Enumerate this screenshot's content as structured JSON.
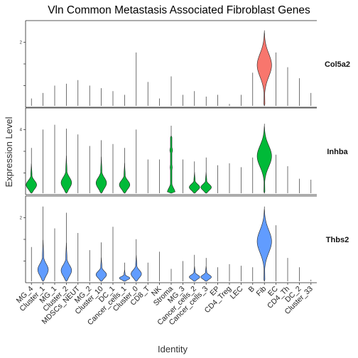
{
  "chart_data": {
    "type": "violin",
    "title": "Vln Common Metastasis Associated Fibroblast Genes",
    "xlabel": "Identity",
    "ylabel": "Expression Level",
    "categories": [
      "MG_4",
      "Cluster_1",
      "MG_1",
      "Cluster_2",
      "MDSCs_NEUT",
      "MG_2",
      "Cluster_10",
      "DC_1",
      "Cancer_cells_1",
      "Cluster_0",
      "CD8_T",
      "NK",
      "Stroma",
      "MG_3",
      "Cancer_cells_2",
      "Cancer_cells_3",
      "EP",
      "CD4_Treg",
      "LEC",
      "B",
      "Fib",
      "EC",
      "CD4_Th",
      "DC_2",
      "Cluster_33"
    ],
    "panels": [
      {
        "gene": "Col5a2",
        "color": "#f8766d",
        "ytick_labels": [
          "2"
        ],
        "max": [
          0.2,
          0.35,
          0.55,
          0.6,
          0.7,
          0.55,
          0.48,
          0.4,
          0.3,
          1.45,
          0.65,
          0.2,
          0.8,
          0.3,
          0.4,
          0.25,
          0.3,
          0.05,
          0.3,
          0.9,
          2.05,
          1.45,
          1.05,
          0.75,
          0.35
        ],
        "violin": [
          0,
          0,
          0,
          0,
          0,
          0,
          0,
          0,
          0,
          0,
          0,
          0,
          0,
          0,
          0,
          0,
          0,
          0,
          0,
          0,
          1,
          0,
          0,
          0,
          0
        ]
      },
      {
        "gene": "Inhba",
        "color": "#00ba38",
        "ytick_labels": [
          "4"
        ],
        "max": [
          2.35,
          3.3,
          3.55,
          3.35,
          3.05,
          2.45,
          2.75,
          2.55,
          2.35,
          3.3,
          1.75,
          1.75,
          3.5,
          1.75,
          1.65,
          1.85,
          1.45,
          1.55,
          1.35,
          1.85,
          3.6,
          2.0,
          1.4,
          0.75,
          0.7
        ],
        "violin": [
          1,
          0,
          0,
          1,
          0,
          0,
          1,
          0,
          1,
          0,
          0,
          0,
          1,
          0,
          1,
          1,
          0,
          0,
          0,
          0,
          1,
          0,
          0,
          0,
          0
        ]
      },
      {
        "gene": "Thbs2",
        "color": "#619cff",
        "ytick_labels": [
          "2"
        ],
        "max": [
          1.1,
          2.4,
          1.7,
          2.2,
          1.55,
          1.0,
          1.25,
          1.75,
          0.6,
          1.35,
          0.6,
          0.95,
          0.4,
          0.65,
          0.85,
          0.75,
          0.45,
          0.55,
          0.5,
          0.45,
          2.4,
          1.8,
          0.75,
          0.45,
          0.05
        ],
        "violin": [
          0,
          1,
          0,
          1,
          0,
          0,
          1,
          0,
          1,
          1,
          0,
          0,
          0,
          0,
          1,
          1,
          0,
          0,
          0,
          0,
          1,
          0,
          0,
          0,
          0
        ]
      }
    ],
    "grid": false,
    "legend": "none"
  }
}
